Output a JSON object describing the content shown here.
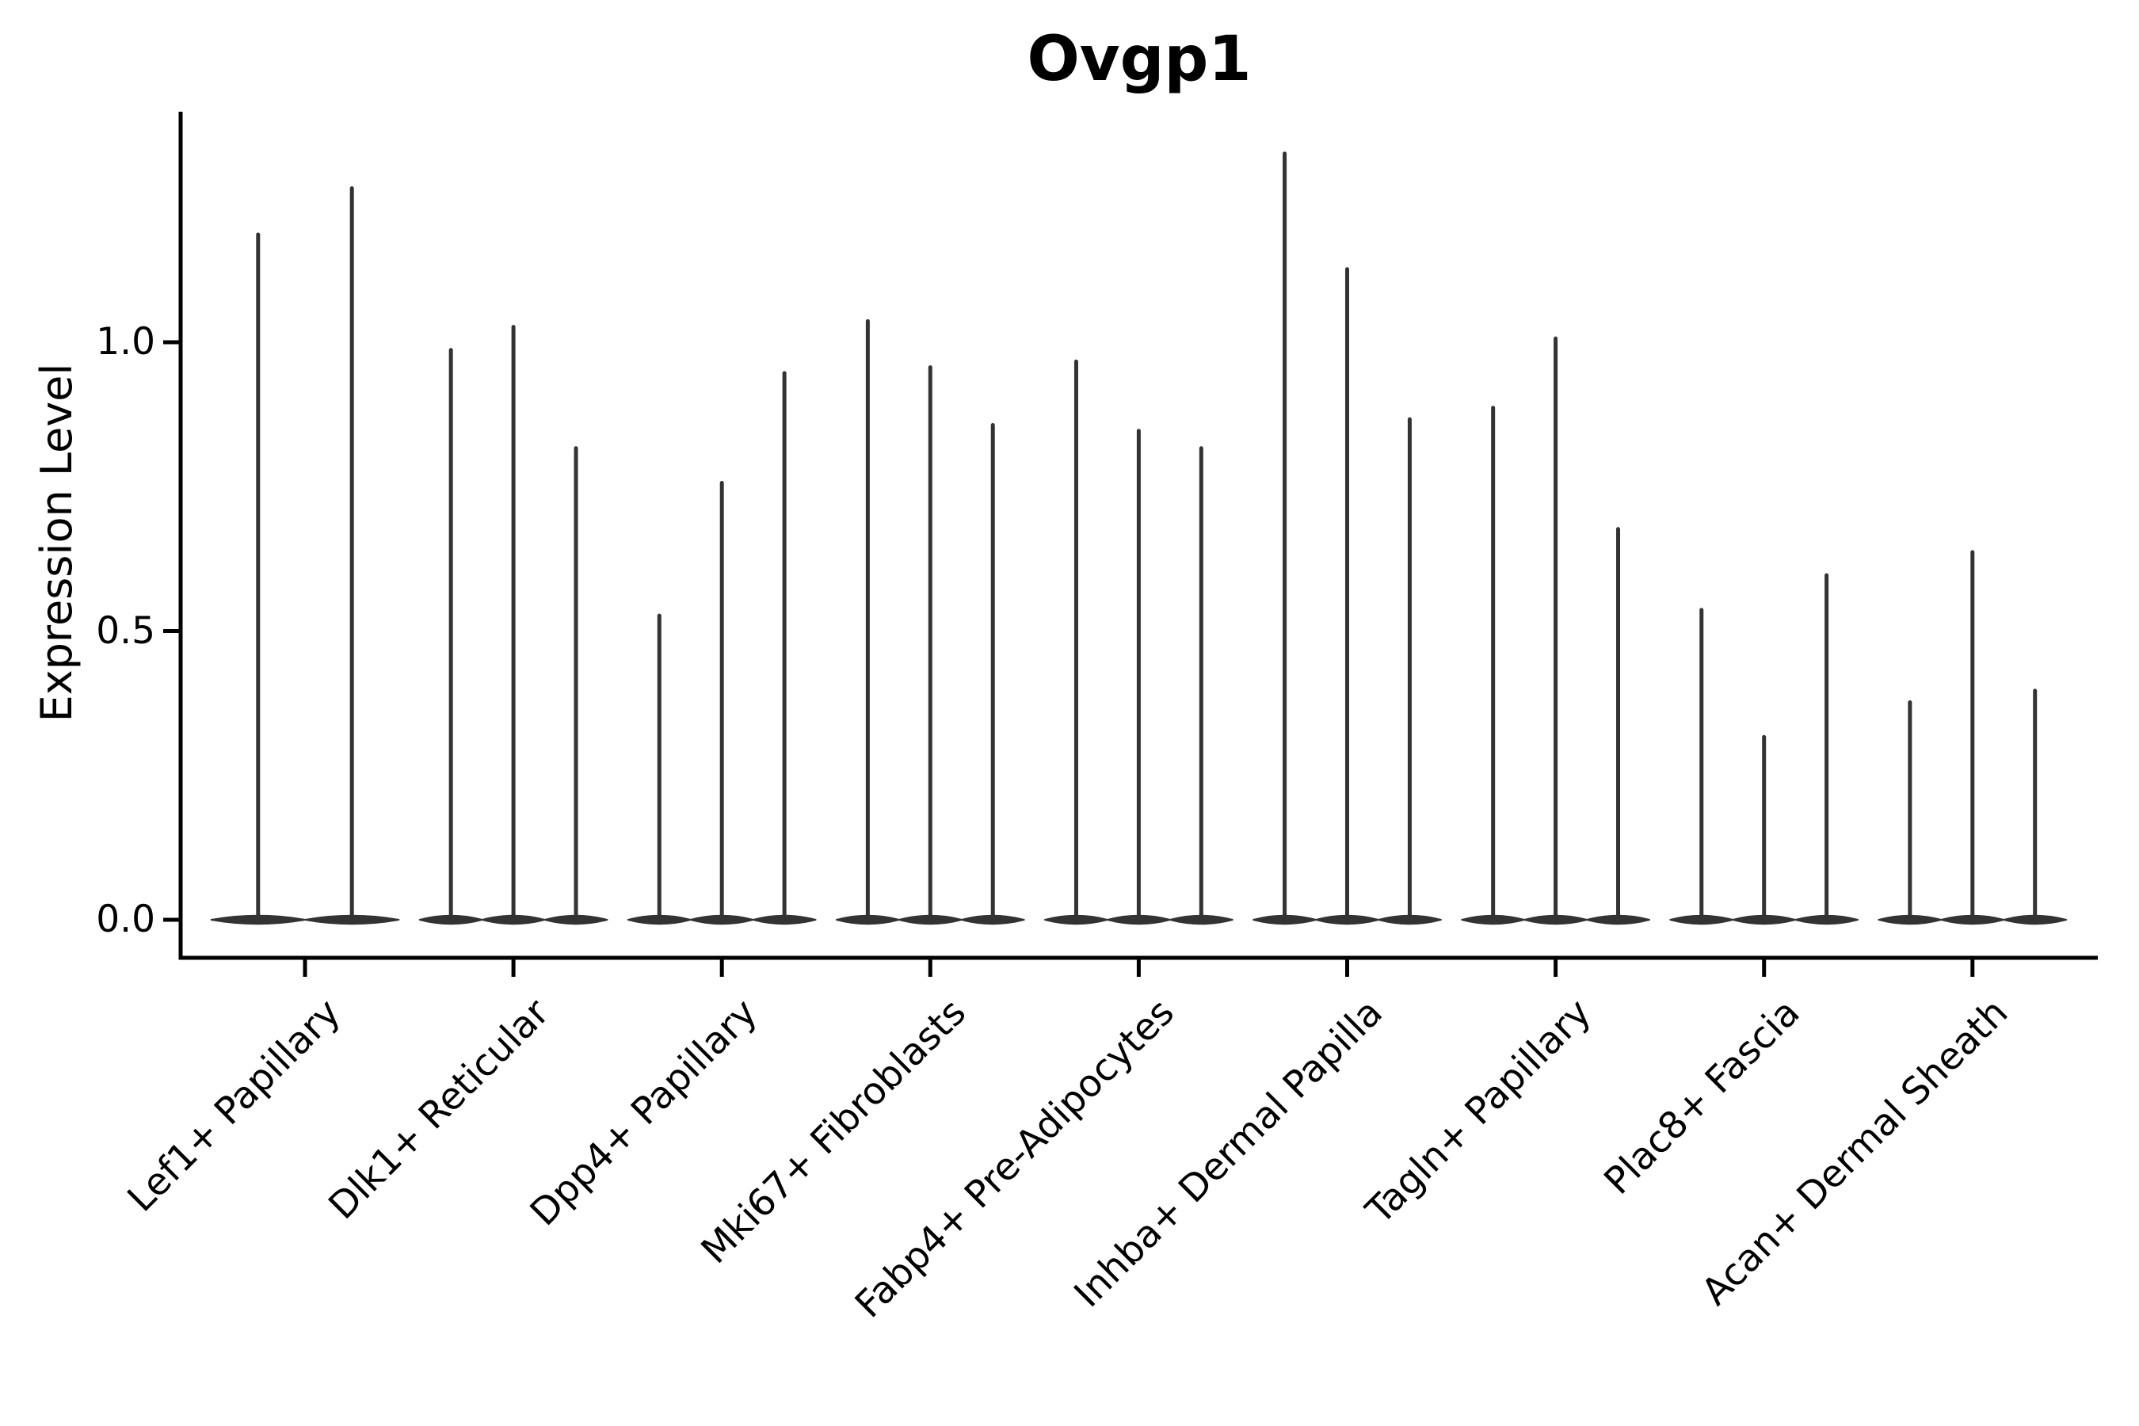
{
  "chart_data": {
    "type": "violin",
    "title": "Ovgp1",
    "ylabel": "Expression Level",
    "xlabel": "",
    "ylim": [
      -0.07,
      1.4
    ],
    "grid": false,
    "legend": null,
    "yticks": [
      {
        "label": "0.0",
        "value": 0.0
      },
      {
        "label": "0.5",
        "value": 0.5
      },
      {
        "label": "1.0",
        "value": 1.0
      }
    ],
    "categories": [
      "Lef1+ Papillary",
      "Dlk1+ Reticular",
      "Dpp4+ Papillary",
      "Mki67+ Fibroblasts",
      "Fabp4+ Pre-Adipocytes",
      "Inhba+ Dermal Papilla",
      "Tagln+ Papillary",
      "Plac8+ Fascia",
      "Acan+ Dermal Sheath"
    ],
    "series": [
      {
        "category": "Lef1+ Papillary",
        "spike_heights": [
          1.19,
          1.27
        ]
      },
      {
        "category": "Dlk1+ Reticular",
        "spike_heights": [
          0.99,
          1.03,
          0.82
        ]
      },
      {
        "category": "Dpp4+ Papillary",
        "spike_heights": [
          0.53,
          0.76,
          0.95
        ]
      },
      {
        "category": "Mki67+ Fibroblasts",
        "spike_heights": [
          1.04,
          0.96,
          0.86
        ]
      },
      {
        "category": "Fabp4+ Pre-Adipocytes",
        "spike_heights": [
          0.97,
          0.85,
          0.82
        ]
      },
      {
        "category": "Inhba+ Dermal Papilla",
        "spike_heights": [
          1.33,
          1.13,
          0.87
        ]
      },
      {
        "category": "Tagln+ Papillary",
        "spike_heights": [
          0.89,
          1.01,
          0.68
        ]
      },
      {
        "category": "Plac8+ Fascia",
        "spike_heights": [
          0.54,
          0.32,
          0.6
        ]
      },
      {
        "category": "Acan+ Dermal Sheath",
        "spike_heights": [
          0.38,
          0.64,
          0.4
        ]
      }
    ],
    "colors": {
      "axis": "#000000",
      "violin": "#333333",
      "text": "#000000"
    }
  }
}
